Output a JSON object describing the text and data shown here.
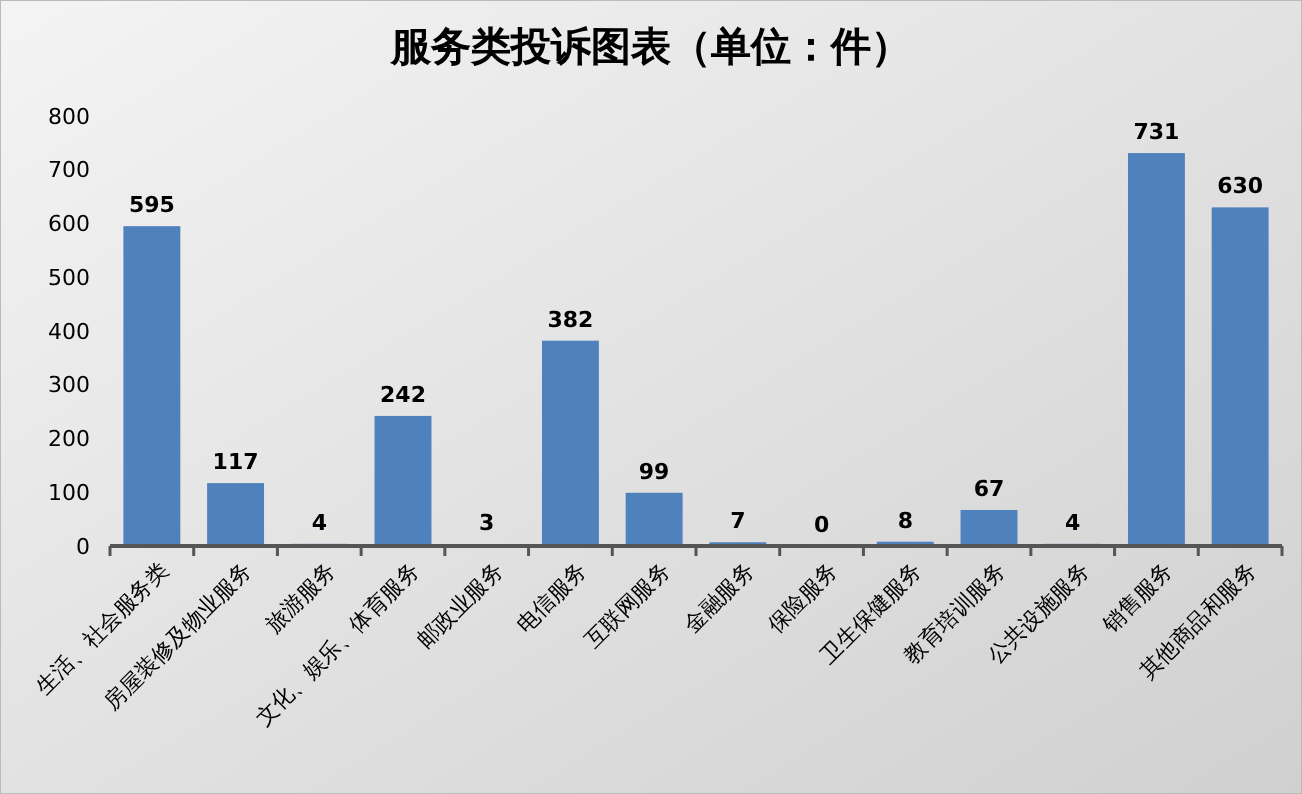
{
  "chart_data": {
    "type": "bar",
    "title": "服务类投诉图表（单位：件）",
    "categories": [
      "生活、社会服务类",
      "房屋装修及物业服务",
      "旅游服务",
      "文化、娱乐、体育服务",
      "邮政业服务",
      "电信服务",
      "互联网服务",
      "金融服务",
      "保险服务",
      "卫生保健服务",
      "教育培训服务",
      "公共设施服务",
      "销售服务",
      "其他商品和服务"
    ],
    "values": [
      595,
      117,
      4,
      242,
      3,
      382,
      99,
      7,
      0,
      8,
      67,
      4,
      731,
      630
    ],
    "color": "#4f81bd",
    "ylim": [
      0,
      800
    ],
    "yticks": [
      0,
      100,
      200,
      300,
      400,
      500,
      600,
      700,
      800
    ],
    "grid": false,
    "data_labels": true
  }
}
